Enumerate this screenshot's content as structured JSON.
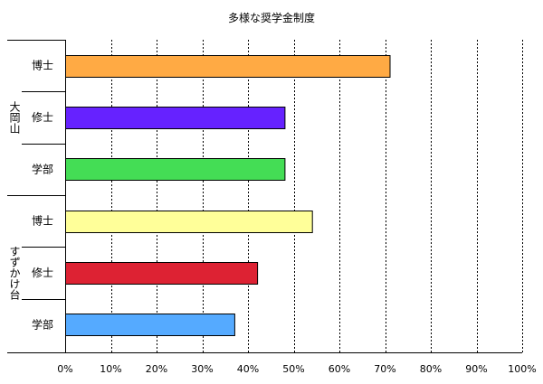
{
  "chart_data": {
    "type": "bar",
    "orientation": "horizontal",
    "title": "多様な奨学金制度",
    "xlim": [
      0,
      100
    ],
    "x_ticks": [
      "0%",
      "10%",
      "20%",
      "30%",
      "40%",
      "50%",
      "60%",
      "70%",
      "80%",
      "90%",
      "100%"
    ],
    "grid": "vertical-dotted",
    "groups": [
      {
        "name": "大岡山",
        "bars": [
          {
            "label": "博士",
            "value": 71,
            "color": "#ffaa44"
          },
          {
            "label": "修士",
            "value": 48,
            "color": "#6622ff"
          },
          {
            "label": "学部",
            "value": 48,
            "color": "#44dd55"
          }
        ]
      },
      {
        "name": "すずかけ台",
        "bars": [
          {
            "label": "博士",
            "value": 54,
            "color": "#ffff99"
          },
          {
            "label": "修士",
            "value": 42,
            "color": "#dd2233"
          },
          {
            "label": "学部",
            "value": 37,
            "color": "#55aaff"
          }
        ]
      }
    ]
  }
}
